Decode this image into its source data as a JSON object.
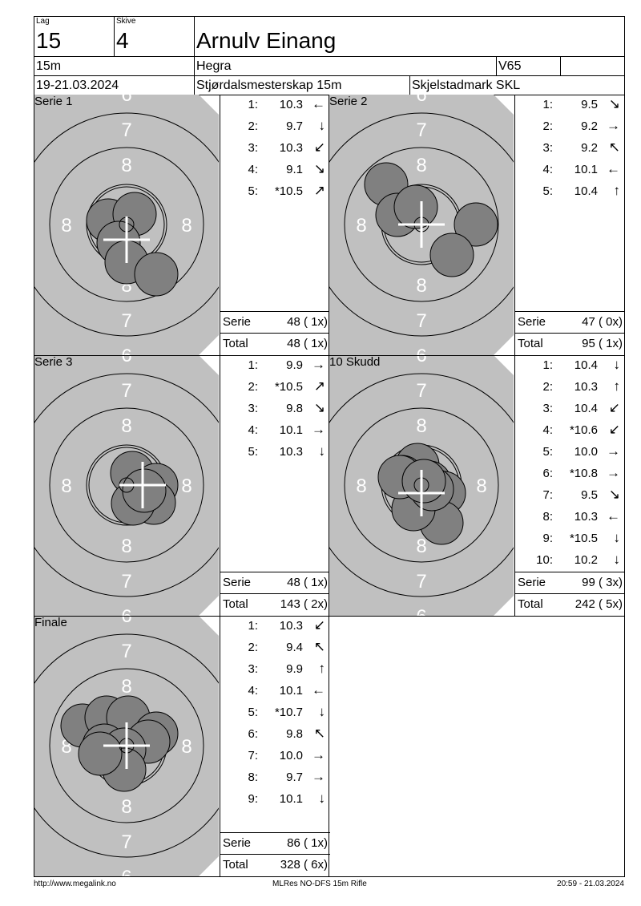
{
  "header": {
    "lag_label": "Lag",
    "lag": "15",
    "skive_label": "Skive",
    "skive": "4",
    "name": "Arnulv Einang",
    "distance": "15m",
    "club": "Hegra",
    "class": "V65",
    "date": "19-21.03.2024",
    "event": "Stjørdalsmesterskap 15m",
    "organizer": "Skjelstadmark SKL"
  },
  "ring_labels": {
    "six": "6",
    "seven": "7",
    "eight": "8"
  },
  "colors": {
    "target": "#c0c0c0",
    "shot": "#808080",
    "cross": "#ffffff"
  },
  "panels": [
    {
      "title": "Serie 1",
      "shots": [
        [
          "1:",
          "10.3",
          "←"
        ],
        [
          "2:",
          "9.7",
          "↓"
        ],
        [
          "3:",
          "10.3",
          "↙"
        ],
        [
          "4:",
          "9.1",
          "↘"
        ],
        [
          "5:",
          "*10.5",
          "↗"
        ]
      ],
      "serie_label": "Serie",
      "serie": "48 ( 1x)",
      "total_label": "Total",
      "total": "48 ( 1x)"
    },
    {
      "title": "Serie 2",
      "shots": [
        [
          "1:",
          "9.5",
          "↘"
        ],
        [
          "2:",
          "9.2",
          "→"
        ],
        [
          "3:",
          "9.2",
          "↖"
        ],
        [
          "4:",
          "10.1",
          "←"
        ],
        [
          "5:",
          "10.4",
          "↑"
        ]
      ],
      "serie_label": "Serie",
      "serie": "47 ( 0x)",
      "total_label": "Total",
      "total": "95 ( 1x)"
    },
    {
      "title": "Serie 3",
      "shots": [
        [
          "1:",
          "9.9",
          "→"
        ],
        [
          "2:",
          "*10.5",
          "↗"
        ],
        [
          "3:",
          "9.8",
          "↘"
        ],
        [
          "4:",
          "10.1",
          "→"
        ],
        [
          "5:",
          "10.3",
          "↓"
        ]
      ],
      "serie_label": "Serie",
      "serie": "48 ( 1x)",
      "total_label": "Total",
      "total": "143 ( 2x)"
    },
    {
      "title": "10 Skudd",
      "shots": [
        [
          "1:",
          "10.4",
          "↓"
        ],
        [
          "2:",
          "10.3",
          "↑"
        ],
        [
          "3:",
          "10.4",
          "↙"
        ],
        [
          "4:",
          "*10.6",
          "↙"
        ],
        [
          "5:",
          "10.0",
          "→"
        ],
        [
          "6:",
          "*10.8",
          "→"
        ],
        [
          "7:",
          "9.5",
          "↘"
        ],
        [
          "8:",
          "10.3",
          "←"
        ],
        [
          "9:",
          "*10.5",
          "↓"
        ],
        [
          "10:",
          "10.2",
          "↓"
        ]
      ],
      "serie_label": "Serie",
      "serie": "99 ( 3x)",
      "total_label": "Total",
      "total": "242 ( 5x)"
    },
    {
      "title": "Finale",
      "shots": [
        [
          "1:",
          "10.3",
          "↙"
        ],
        [
          "2:",
          "9.4",
          "↖"
        ],
        [
          "3:",
          "9.9",
          "↑"
        ],
        [
          "4:",
          "10.1",
          "←"
        ],
        [
          "5:",
          "*10.7",
          "↓"
        ],
        [
          "6:",
          "9.8",
          "↖"
        ],
        [
          "7:",
          "10.0",
          "→"
        ],
        [
          "8:",
          "9.7",
          "→"
        ],
        [
          "9:",
          "10.1",
          "↓"
        ]
      ],
      "serie_label": "Serie",
      "serie": "86 ( 1x)",
      "total_label": "Total",
      "total": "328 ( 6x)"
    }
  ],
  "footer": {
    "left": "http://www.megalink.no",
    "center": "MLRes NO-DFS 15m Rifle",
    "right": "20:59 - 21.03.2024"
  }
}
